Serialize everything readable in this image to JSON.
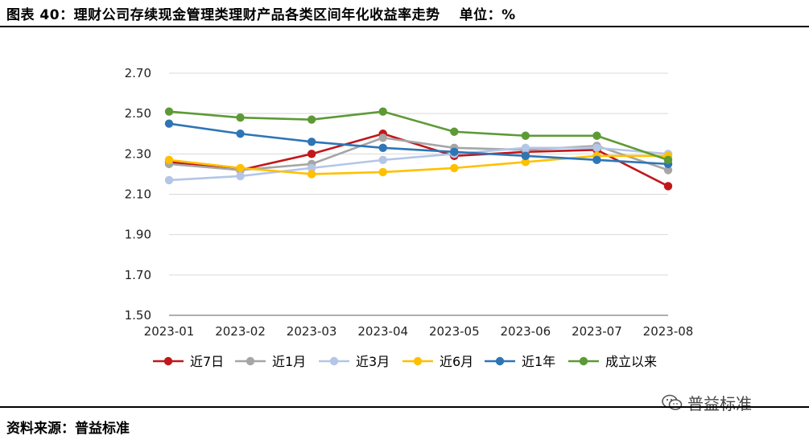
{
  "header": {
    "title": "图表 40：理财公司存续现金管理类理财产品各类区间年化收益率走势",
    "unit": "单位：%"
  },
  "footer": {
    "source": "资料来源：普益标准"
  },
  "watermark": {
    "text": "普益标准",
    "icon": "wechat-icon"
  },
  "chart_data": {
    "type": "line",
    "title": "",
    "xlabel": "",
    "ylabel": "",
    "categories": [
      "2023-01",
      "2023-02",
      "2023-03",
      "2023-04",
      "2023-05",
      "2023-06",
      "2023-07",
      "2023-08"
    ],
    "ylim": [
      1.5,
      2.7
    ],
    "yticks": [
      "2.70",
      "2.50",
      "2.30",
      "2.10",
      "1.90",
      "1.70",
      "1.50"
    ],
    "grid": true,
    "legend_position": "bottom",
    "series": [
      {
        "name": "近7日",
        "color": "#c0181b",
        "values": [
          2.26,
          2.22,
          2.3,
          2.4,
          2.29,
          2.31,
          2.32,
          2.14
        ]
      },
      {
        "name": "近1月",
        "color": "#a6a6a6",
        "values": [
          2.25,
          2.22,
          2.25,
          2.38,
          2.33,
          2.32,
          2.34,
          2.22
        ]
      },
      {
        "name": "近3月",
        "color": "#b4c6e7",
        "values": [
          2.17,
          2.19,
          2.23,
          2.27,
          2.3,
          2.33,
          2.33,
          2.3
        ]
      },
      {
        "name": "近6月",
        "color": "#ffc000",
        "values": [
          2.27,
          2.23,
          2.2,
          2.21,
          2.23,
          2.26,
          2.29,
          2.29
        ]
      },
      {
        "name": "近1年",
        "color": "#2e75b6",
        "values": [
          2.45,
          2.4,
          2.36,
          2.33,
          2.31,
          2.29,
          2.27,
          2.25
        ]
      },
      {
        "name": "成立以来",
        "color": "#5d9a35",
        "values": [
          2.51,
          2.48,
          2.47,
          2.51,
          2.41,
          2.39,
          2.39,
          2.27
        ]
      }
    ]
  }
}
